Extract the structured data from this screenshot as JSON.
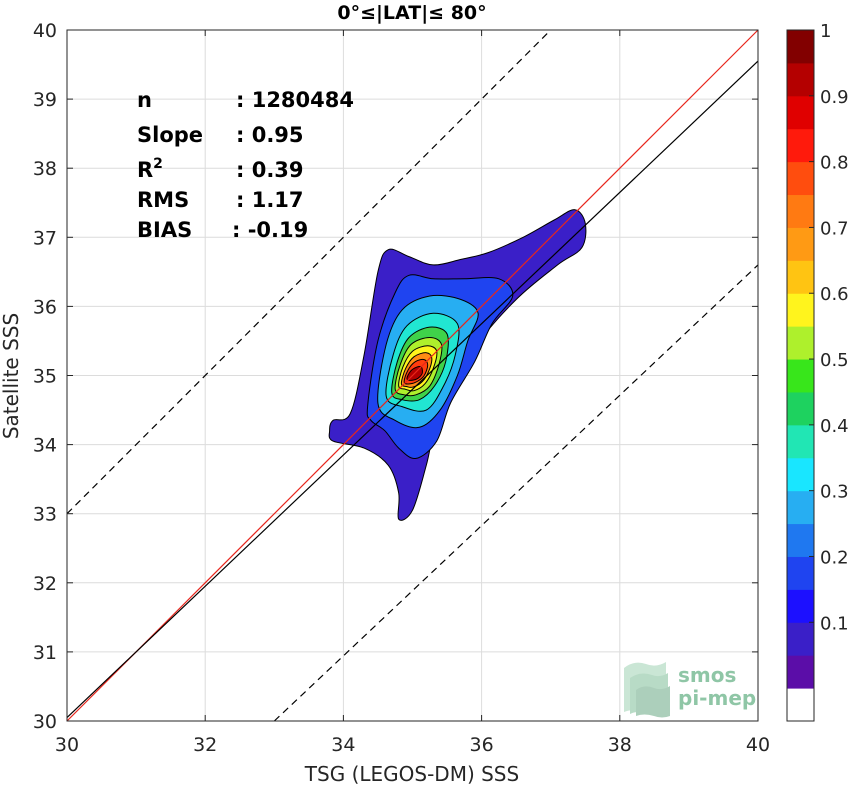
{
  "chart_data": {
    "type": "contour",
    "title": "0°≤|LAT|≤ 80°",
    "xlabel": "TSG (LEGOS-DM) SSS",
    "ylabel": "Satellite SSS",
    "xlim": [
      30,
      40
    ],
    "ylim": [
      30,
      40
    ],
    "xticks": [
      "30",
      "32",
      "34",
      "36",
      "38",
      "40"
    ],
    "yticks": [
      "30",
      "31",
      "32",
      "33",
      "34",
      "35",
      "36",
      "37",
      "38",
      "39",
      "40"
    ],
    "grid": true,
    "stats": [
      {
        "label": "n",
        "value": ": 1280484"
      },
      {
        "label": "Slope",
        "value": ": 0.95"
      },
      {
        "label": "R",
        "sup": "2",
        "value": ": 0.39"
      },
      {
        "label": "RMS",
        "value": ": 1.17"
      },
      {
        "label": "BIAS",
        "value": ": -0.19"
      }
    ],
    "lines": [
      {
        "name": "one-to-one",
        "color": "#e8261c",
        "style": "solid",
        "points": [
          [
            30,
            30
          ],
          [
            40,
            40
          ]
        ]
      },
      {
        "name": "regression",
        "color": "#000000",
        "style": "solid",
        "points": [
          [
            30,
            30.05
          ],
          [
            40,
            39.55
          ]
        ]
      },
      {
        "name": "upper-bound",
        "color": "#000000",
        "style": "dashed",
        "points": [
          [
            30,
            33
          ],
          [
            37,
            40
          ]
        ]
      },
      {
        "name": "lower-bound",
        "color": "#000000",
        "style": "dashed",
        "points": [
          [
            33,
            30
          ],
          [
            40,
            36.6
          ]
        ]
      }
    ],
    "density_center": [
      35.05,
      35.05
    ],
    "contour_levels": [
      {
        "level": 0.05,
        "color": "#3a1fc8",
        "points": [
          [
            33.85,
            34.35
          ],
          [
            34.1,
            34.45
          ],
          [
            34.3,
            35.3
          ],
          [
            34.5,
            36.5
          ],
          [
            34.65,
            36.82
          ],
          [
            34.95,
            36.72
          ],
          [
            35.3,
            36.6
          ],
          [
            35.7,
            36.68
          ],
          [
            36.1,
            36.78
          ],
          [
            36.6,
            37.0
          ],
          [
            37.05,
            37.25
          ],
          [
            37.35,
            37.4
          ],
          [
            37.5,
            37.2
          ],
          [
            37.45,
            36.85
          ],
          [
            37.1,
            36.6
          ],
          [
            36.5,
            36.1
          ],
          [
            35.9,
            35.4
          ],
          [
            35.4,
            34.5
          ],
          [
            35.2,
            33.7
          ],
          [
            35.0,
            33.05
          ],
          [
            34.8,
            32.92
          ],
          [
            34.8,
            33.3
          ],
          [
            34.65,
            33.7
          ],
          [
            34.3,
            33.95
          ],
          [
            33.85,
            34.05
          ],
          [
            33.8,
            34.2
          ]
        ]
      },
      {
        "level": 0.1,
        "color": "#1f44f0",
        "points": [
          [
            34.35,
            34.55
          ],
          [
            34.5,
            35.5
          ],
          [
            34.75,
            36.2
          ],
          [
            34.95,
            36.45
          ],
          [
            35.3,
            36.4
          ],
          [
            35.75,
            36.4
          ],
          [
            36.25,
            36.4
          ],
          [
            36.45,
            36.15
          ],
          [
            36.15,
            35.75
          ],
          [
            35.9,
            35.2
          ],
          [
            35.55,
            34.6
          ],
          [
            35.35,
            34.05
          ],
          [
            35.05,
            33.8
          ],
          [
            34.8,
            33.95
          ],
          [
            34.6,
            34.2
          ],
          [
            34.4,
            34.35
          ]
        ]
      },
      {
        "level": 0.2,
        "color": "#27aef2",
        "points": [
          [
            34.5,
            34.6
          ],
          [
            34.62,
            35.45
          ],
          [
            34.85,
            35.95
          ],
          [
            35.25,
            36.15
          ],
          [
            35.7,
            36.1
          ],
          [
            35.95,
            35.9
          ],
          [
            35.8,
            35.5
          ],
          [
            35.65,
            35.0
          ],
          [
            35.4,
            34.5
          ],
          [
            35.1,
            34.25
          ],
          [
            34.75,
            34.35
          ]
        ]
      },
      {
        "level": 0.3,
        "color": "#21e6d2",
        "points": [
          [
            34.62,
            34.7
          ],
          [
            34.72,
            35.3
          ],
          [
            34.92,
            35.72
          ],
          [
            35.3,
            35.9
          ],
          [
            35.65,
            35.75
          ],
          [
            35.62,
            35.3
          ],
          [
            35.45,
            34.85
          ],
          [
            35.2,
            34.5
          ],
          [
            34.85,
            34.55
          ]
        ]
      },
      {
        "level": 0.4,
        "color": "#3fd24a",
        "points": [
          [
            34.7,
            34.75
          ],
          [
            34.78,
            35.2
          ],
          [
            34.95,
            35.55
          ],
          [
            35.25,
            35.7
          ],
          [
            35.5,
            35.6
          ],
          [
            35.48,
            35.2
          ],
          [
            35.32,
            34.85
          ],
          [
            35.1,
            34.65
          ],
          [
            34.85,
            34.65
          ]
        ]
      },
      {
        "level": 0.5,
        "color": "#aef02c",
        "points": [
          [
            34.75,
            34.8
          ],
          [
            34.82,
            35.15
          ],
          [
            34.98,
            35.45
          ],
          [
            35.25,
            35.55
          ],
          [
            35.42,
            35.45
          ],
          [
            35.38,
            35.15
          ],
          [
            35.25,
            34.85
          ],
          [
            35.05,
            34.72
          ],
          [
            34.88,
            34.72
          ]
        ]
      },
      {
        "level": 0.6,
        "color": "#fff41d",
        "points": [
          [
            34.8,
            34.85
          ],
          [
            34.86,
            35.12
          ],
          [
            35.0,
            35.35
          ],
          [
            35.22,
            35.43
          ],
          [
            35.35,
            35.35
          ],
          [
            35.3,
            35.1
          ],
          [
            35.18,
            34.88
          ],
          [
            35.02,
            34.78
          ],
          [
            34.9,
            34.8
          ]
        ]
      },
      {
        "level": 0.7,
        "color": "#ff8c14",
        "points": [
          [
            34.84,
            34.88
          ],
          [
            34.9,
            35.1
          ],
          [
            35.02,
            35.27
          ],
          [
            35.2,
            35.33
          ],
          [
            35.28,
            35.25
          ],
          [
            35.23,
            35.05
          ],
          [
            35.13,
            34.9
          ],
          [
            35.0,
            34.83
          ],
          [
            34.92,
            34.84
          ]
        ]
      },
      {
        "level": 0.8,
        "color": "#ff3d0e",
        "points": [
          [
            34.88,
            34.9
          ],
          [
            34.93,
            35.07
          ],
          [
            35.04,
            35.2
          ],
          [
            35.17,
            35.23
          ],
          [
            35.22,
            35.15
          ],
          [
            35.17,
            35.0
          ],
          [
            35.08,
            34.92
          ],
          [
            34.97,
            34.88
          ]
        ]
      },
      {
        "level": 0.9,
        "color": "#b40000",
        "points": [
          [
            34.92,
            34.95
          ],
          [
            34.97,
            35.06
          ],
          [
            35.06,
            35.12
          ],
          [
            35.13,
            35.12
          ],
          [
            35.14,
            35.03
          ],
          [
            35.08,
            34.96
          ],
          [
            35.0,
            34.93
          ]
        ]
      }
    ],
    "colorbar": {
      "ticks": [
        "0.1",
        "0.2",
        "0.3",
        "0.4",
        "0.5",
        "0.6",
        "0.7",
        "0.8",
        "0.9",
        "1"
      ],
      "colors": [
        "#ffffff",
        "#5b0da8",
        "#3a1fc8",
        "#1c10ff",
        "#1f44f0",
        "#1f78f0",
        "#27aef2",
        "#19e6ff",
        "#21e6b4",
        "#1ed25f",
        "#38e61b",
        "#aef02c",
        "#fff41d",
        "#ffc412",
        "#ff9a14",
        "#ff7a12",
        "#ff4d0e",
        "#ff1a0c",
        "#e00000",
        "#b40000",
        "#820000"
      ]
    },
    "logo": {
      "line1": "smos",
      "line2": "pi-mep"
    }
  }
}
